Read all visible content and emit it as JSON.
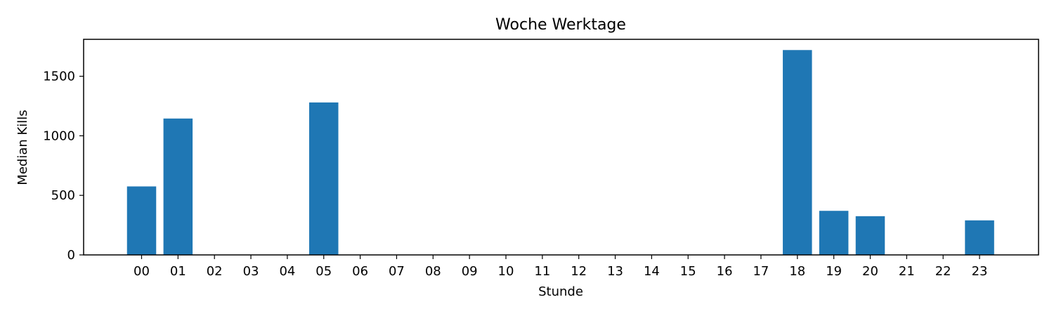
{
  "chart_data": {
    "type": "bar",
    "title": "Woche Werktage",
    "xlabel": "Stunde",
    "ylabel": "Median Kills",
    "categories": [
      "00",
      "01",
      "02",
      "03",
      "04",
      "05",
      "06",
      "07",
      "08",
      "09",
      "10",
      "11",
      "12",
      "13",
      "14",
      "15",
      "16",
      "17",
      "18",
      "19",
      "20",
      "21",
      "22",
      "23"
    ],
    "values": [
      575,
      1145,
      0,
      0,
      0,
      1280,
      0,
      0,
      0,
      0,
      0,
      0,
      0,
      0,
      0,
      0,
      0,
      0,
      1720,
      370,
      325,
      0,
      0,
      290
    ],
    "ylim": [
      0,
      1810
    ],
    "yticks": [
      0,
      500,
      1000,
      1500
    ],
    "grid": false,
    "legend": false,
    "bar_color": "#1f77b4"
  }
}
